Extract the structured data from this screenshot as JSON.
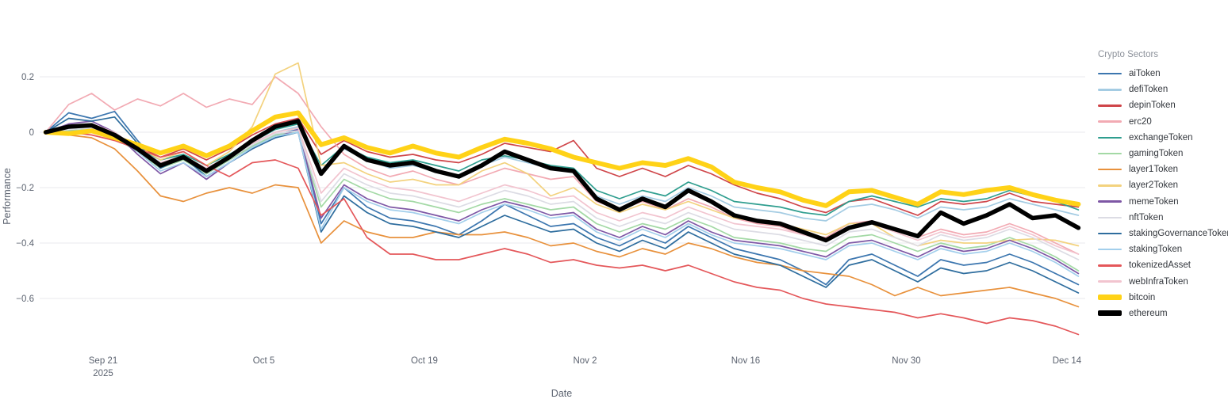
{
  "chart_data": {
    "type": "line",
    "title": "",
    "xlabel": "Date",
    "ylabel": "Performance",
    "legend_title": "Crypto Sectors",
    "ylim": [
      -0.78,
      0.3
    ],
    "grid": "horizontal-only",
    "legend_position": "right",
    "x_unit": "days since Sep 16, 2025 (samples every 2 days)",
    "x": [
      0,
      2,
      4,
      6,
      8,
      10,
      12,
      14,
      16,
      18,
      20,
      22,
      24,
      26,
      28,
      30,
      32,
      34,
      36,
      38,
      40,
      42,
      44,
      46,
      48,
      50,
      52,
      54,
      56,
      58,
      60,
      62,
      64,
      66,
      68,
      70,
      72,
      74,
      76,
      78,
      80,
      82,
      84,
      86,
      88,
      90
    ],
    "x_ticks": [
      {
        "day": 5,
        "label": "Sep 21",
        "sublabel": "2025"
      },
      {
        "day": 19,
        "label": "Oct 5"
      },
      {
        "day": 33,
        "label": "Oct 19"
      },
      {
        "day": 47,
        "label": "Nov 2"
      },
      {
        "day": 61,
        "label": "Nov 16"
      },
      {
        "day": 75,
        "label": "Nov 30"
      },
      {
        "day": 89,
        "label": "Dec 14"
      }
    ],
    "y_ticks": [
      {
        "value": 0.2,
        "label": "0.2"
      },
      {
        "value": 0,
        "label": "0"
      },
      {
        "value": -0.2,
        "label": "−0.2"
      },
      {
        "value": -0.4,
        "label": "−0.4"
      },
      {
        "value": -0.6,
        "label": "−0.6"
      }
    ],
    "series": [
      {
        "name": "aiToken",
        "color": "#3c76af",
        "width": 1.7,
        "values": [
          0,
          0.07,
          0.05,
          0.075,
          -0.03,
          -0.12,
          -0.08,
          -0.15,
          -0.1,
          -0.05,
          -0.01,
          0.01,
          -0.33,
          -0.2,
          -0.27,
          -0.31,
          -0.32,
          -0.34,
          -0.37,
          -0.32,
          -0.26,
          -0.3,
          -0.34,
          -0.33,
          -0.38,
          -0.41,
          -0.37,
          -0.4,
          -0.34,
          -0.38,
          -0.42,
          -0.44,
          -0.46,
          -0.5,
          -0.55,
          -0.46,
          -0.44,
          -0.48,
          -0.52,
          -0.46,
          -0.48,
          -0.47,
          -0.44,
          -0.47,
          -0.51,
          -0.55
        ]
      },
      {
        "name": "defiToken",
        "color": "#a4cce3",
        "width": 1.7,
        "values": [
          0,
          0.015,
          0.02,
          -0.01,
          -0.05,
          -0.11,
          -0.085,
          -0.13,
          -0.085,
          -0.04,
          0,
          0.02,
          -0.14,
          -0.06,
          -0.1,
          -0.13,
          -0.12,
          -0.14,
          -0.16,
          -0.12,
          -0.09,
          -0.11,
          -0.13,
          -0.14,
          -0.23,
          -0.26,
          -0.23,
          -0.25,
          -0.2,
          -0.23,
          -0.27,
          -0.28,
          -0.29,
          -0.31,
          -0.32,
          -0.27,
          -0.26,
          -0.28,
          -0.31,
          -0.27,
          -0.28,
          -0.27,
          -0.24,
          -0.26,
          -0.28,
          -0.3
        ]
      },
      {
        "name": "depinToken",
        "color": "#cf4549",
        "width": 1.7,
        "values": [
          0,
          0.01,
          0,
          -0.02,
          -0.05,
          -0.09,
          -0.06,
          -0.1,
          -0.06,
          -0.01,
          0.03,
          0.05,
          -0.08,
          -0.03,
          -0.07,
          -0.09,
          -0.08,
          -0.1,
          -0.11,
          -0.08,
          -0.04,
          -0.055,
          -0.07,
          -0.03,
          -0.13,
          -0.16,
          -0.13,
          -0.16,
          -0.12,
          -0.15,
          -0.19,
          -0.22,
          -0.24,
          -0.27,
          -0.29,
          -0.25,
          -0.24,
          -0.27,
          -0.3,
          -0.25,
          -0.26,
          -0.25,
          -0.22,
          -0.25,
          -0.26,
          -0.27
        ]
      },
      {
        "name": "erc20",
        "color": "#f2aab3",
        "width": 1.7,
        "values": [
          0,
          0.1,
          0.14,
          0.08,
          0.12,
          0.095,
          0.14,
          0.09,
          0.12,
          0.1,
          0.2,
          0.14,
          0.02,
          -0.08,
          -0.13,
          -0.16,
          -0.14,
          -0.17,
          -0.19,
          -0.16,
          -0.13,
          -0.15,
          -0.17,
          -0.16,
          -0.25,
          -0.28,
          -0.25,
          -0.28,
          -0.24,
          -0.27,
          -0.31,
          -0.33,
          -0.34,
          -0.37,
          -0.38,
          -0.33,
          -0.32,
          -0.35,
          -0.38,
          -0.35,
          -0.37,
          -0.36,
          -0.33,
          -0.36,
          -0.4,
          -0.44
        ]
      },
      {
        "name": "exchangeToken",
        "color": "#2f9e8f",
        "width": 1.7,
        "values": [
          0,
          0.01,
          0.015,
          -0.015,
          -0.055,
          -0.1,
          -0.08,
          -0.12,
          -0.08,
          -0.035,
          0.01,
          0.03,
          -0.12,
          -0.05,
          -0.09,
          -0.11,
          -0.1,
          -0.12,
          -0.14,
          -0.1,
          -0.085,
          -0.1,
          -0.12,
          -0.13,
          -0.21,
          -0.24,
          -0.21,
          -0.23,
          -0.18,
          -0.21,
          -0.25,
          -0.26,
          -0.27,
          -0.29,
          -0.3,
          -0.25,
          -0.23,
          -0.25,
          -0.27,
          -0.24,
          -0.25,
          -0.24,
          -0.21,
          -0.23,
          -0.25,
          -0.28
        ]
      },
      {
        "name": "gamingToken",
        "color": "#a3d9a5",
        "width": 1.7,
        "values": [
          0,
          0.005,
          0.01,
          -0.02,
          -0.07,
          -0.13,
          -0.1,
          -0.15,
          -0.1,
          -0.05,
          -0.01,
          0,
          -0.27,
          -0.17,
          -0.21,
          -0.24,
          -0.25,
          -0.27,
          -0.29,
          -0.26,
          -0.24,
          -0.26,
          -0.28,
          -0.27,
          -0.33,
          -0.36,
          -0.33,
          -0.35,
          -0.31,
          -0.34,
          -0.38,
          -0.39,
          -0.4,
          -0.42,
          -0.43,
          -0.38,
          -0.37,
          -0.4,
          -0.43,
          -0.4,
          -0.42,
          -0.41,
          -0.38,
          -0.41,
          -0.45,
          -0.5
        ]
      },
      {
        "name": "layer1Token",
        "color": "#e8913c",
        "width": 1.7,
        "values": [
          0,
          -0.01,
          -0.02,
          -0.06,
          -0.14,
          -0.23,
          -0.25,
          -0.22,
          -0.2,
          -0.22,
          -0.19,
          -0.2,
          -0.4,
          -0.32,
          -0.36,
          -0.38,
          -0.38,
          -0.36,
          -0.37,
          -0.37,
          -0.36,
          -0.38,
          -0.41,
          -0.4,
          -0.43,
          -0.45,
          -0.42,
          -0.44,
          -0.4,
          -0.42,
          -0.45,
          -0.47,
          -0.48,
          -0.5,
          -0.51,
          -0.52,
          -0.55,
          -0.59,
          -0.56,
          -0.59,
          -0.58,
          -0.57,
          -0.56,
          -0.58,
          -0.6,
          -0.63
        ]
      },
      {
        "name": "layer2Token",
        "color": "#f3d27e",
        "width": 1.7,
        "values": [
          0,
          0,
          0.01,
          -0.02,
          -0.05,
          -0.1,
          -0.07,
          -0.12,
          -0.07,
          0.02,
          0.21,
          0.25,
          -0.12,
          -0.11,
          -0.15,
          -0.18,
          -0.17,
          -0.19,
          -0.19,
          -0.14,
          -0.11,
          -0.15,
          -0.23,
          -0.2,
          -0.26,
          -0.29,
          -0.26,
          -0.28,
          -0.25,
          -0.28,
          -0.31,
          -0.32,
          -0.33,
          -0.35,
          -0.37,
          -0.33,
          -0.33,
          -0.38,
          -0.41,
          -0.39,
          -0.4,
          -0.4,
          -0.39,
          -0.385,
          -0.39,
          -0.41
        ]
      },
      {
        "name": "memeToken",
        "color": "#7e57a5",
        "width": 1.7,
        "values": [
          0,
          0.03,
          0.04,
          0,
          -0.08,
          -0.15,
          -0.11,
          -0.17,
          -0.11,
          -0.06,
          -0.02,
          0.01,
          -0.31,
          -0.19,
          -0.24,
          -0.27,
          -0.28,
          -0.3,
          -0.32,
          -0.28,
          -0.25,
          -0.27,
          -0.3,
          -0.29,
          -0.35,
          -0.38,
          -0.34,
          -0.37,
          -0.32,
          -0.36,
          -0.39,
          -0.4,
          -0.41,
          -0.43,
          -0.45,
          -0.4,
          -0.39,
          -0.42,
          -0.45,
          -0.41,
          -0.43,
          -0.42,
          -0.39,
          -0.42,
          -0.46,
          -0.51
        ]
      },
      {
        "name": "nftToken",
        "color": "#dcdce4",
        "width": 1.7,
        "values": [
          0,
          0.01,
          0.015,
          -0.015,
          -0.065,
          -0.12,
          -0.095,
          -0.14,
          -0.095,
          -0.045,
          -0.005,
          0.005,
          -0.25,
          -0.15,
          -0.19,
          -0.22,
          -0.23,
          -0.25,
          -0.27,
          -0.24,
          -0.21,
          -0.23,
          -0.26,
          -0.25,
          -0.31,
          -0.34,
          -0.31,
          -0.33,
          -0.29,
          -0.32,
          -0.35,
          -0.36,
          -0.37,
          -0.39,
          -0.41,
          -0.36,
          -0.35,
          -0.38,
          -0.41,
          -0.37,
          -0.39,
          -0.38,
          -0.35,
          -0.38,
          -0.42,
          -0.46
        ]
      },
      {
        "name": "stakingGovernanceToken",
        "color": "#2e6d9e",
        "width": 1.7,
        "values": [
          0,
          0.05,
          0.04,
          0.055,
          -0.04,
          -0.13,
          -0.09,
          -0.16,
          -0.11,
          -0.06,
          -0.02,
          0,
          -0.36,
          -0.23,
          -0.29,
          -0.33,
          -0.34,
          -0.36,
          -0.38,
          -0.34,
          -0.3,
          -0.33,
          -0.36,
          -0.35,
          -0.4,
          -0.43,
          -0.39,
          -0.42,
          -0.36,
          -0.4,
          -0.44,
          -0.46,
          -0.48,
          -0.52,
          -0.56,
          -0.48,
          -0.46,
          -0.5,
          -0.54,
          -0.49,
          -0.51,
          -0.5,
          -0.47,
          -0.5,
          -0.54,
          -0.58
        ]
      },
      {
        "name": "stakingToken",
        "color": "#a3cfec",
        "width": 1.7,
        "values": [
          0,
          0.02,
          0.025,
          -0.005,
          -0.07,
          -0.14,
          -0.11,
          -0.16,
          -0.11,
          -0.055,
          -0.015,
          0,
          -0.35,
          -0.2,
          -0.25,
          -0.28,
          -0.29,
          -0.31,
          -0.33,
          -0.29,
          -0.26,
          -0.28,
          -0.31,
          -0.3,
          -0.36,
          -0.39,
          -0.35,
          -0.38,
          -0.33,
          -0.37,
          -0.4,
          -0.41,
          -0.42,
          -0.44,
          -0.46,
          -0.41,
          -0.4,
          -0.43,
          -0.46,
          -0.42,
          -0.44,
          -0.43,
          -0.4,
          -0.43,
          -0.47,
          -0.52
        ]
      },
      {
        "name": "tokenizedAsset",
        "color": "#e4575a",
        "width": 1.7,
        "values": [
          0,
          0,
          -0.01,
          -0.03,
          -0.06,
          -0.09,
          -0.07,
          -0.12,
          -0.16,
          -0.11,
          -0.1,
          -0.13,
          -0.3,
          -0.24,
          -0.38,
          -0.44,
          -0.44,
          -0.46,
          -0.46,
          -0.44,
          -0.42,
          -0.44,
          -0.47,
          -0.46,
          -0.48,
          -0.49,
          -0.48,
          -0.5,
          -0.48,
          -0.51,
          -0.54,
          -0.56,
          -0.57,
          -0.6,
          -0.62,
          -0.63,
          -0.64,
          -0.65,
          -0.67,
          -0.655,
          -0.67,
          -0.69,
          -0.67,
          -0.68,
          -0.7,
          -0.73
        ]
      },
      {
        "name": "webInfraToken",
        "color": "#f2c4cf",
        "width": 1.7,
        "values": [
          0,
          0.02,
          0.03,
          0,
          -0.06,
          -0.11,
          -0.085,
          -0.13,
          -0.085,
          -0.04,
          0,
          0.015,
          -0.22,
          -0.13,
          -0.17,
          -0.2,
          -0.21,
          -0.23,
          -0.25,
          -0.22,
          -0.19,
          -0.21,
          -0.24,
          -0.23,
          -0.29,
          -0.32,
          -0.29,
          -0.31,
          -0.27,
          -0.3,
          -0.33,
          -0.34,
          -0.35,
          -0.37,
          -0.39,
          -0.34,
          -0.33,
          -0.36,
          -0.39,
          -0.36,
          -0.38,
          -0.37,
          -0.34,
          -0.37,
          -0.41,
          -0.44
        ]
      },
      {
        "name": "bitcoin",
        "color": "#ffd217",
        "width": 6,
        "values": [
          0,
          -0.005,
          0.005,
          -0.02,
          -0.045,
          -0.075,
          -0.05,
          -0.085,
          -0.05,
          0.005,
          0.055,
          0.07,
          -0.045,
          -0.02,
          -0.055,
          -0.075,
          -0.05,
          -0.075,
          -0.09,
          -0.055,
          -0.025,
          -0.04,
          -0.06,
          -0.09,
          -0.11,
          -0.13,
          -0.11,
          -0.12,
          -0.095,
          -0.125,
          -0.18,
          -0.2,
          -0.215,
          -0.245,
          -0.265,
          -0.215,
          -0.21,
          -0.235,
          -0.26,
          -0.215,
          -0.225,
          -0.21,
          -0.2,
          -0.225,
          -0.245,
          -0.26
        ]
      },
      {
        "name": "ethereum",
        "color": "#000000",
        "width": 5.5,
        "values": [
          0,
          0.02,
          0.025,
          -0.01,
          -0.06,
          -0.12,
          -0.09,
          -0.14,
          -0.09,
          -0.03,
          0.02,
          0.04,
          -0.15,
          -0.05,
          -0.1,
          -0.12,
          -0.11,
          -0.14,
          -0.16,
          -0.12,
          -0.07,
          -0.1,
          -0.13,
          -0.14,
          -0.24,
          -0.28,
          -0.24,
          -0.27,
          -0.21,
          -0.25,
          -0.3,
          -0.32,
          -0.33,
          -0.36,
          -0.39,
          -0.345,
          -0.325,
          -0.35,
          -0.375,
          -0.29,
          -0.33,
          -0.3,
          -0.26,
          -0.31,
          -0.3,
          -0.345
        ]
      }
    ]
  }
}
